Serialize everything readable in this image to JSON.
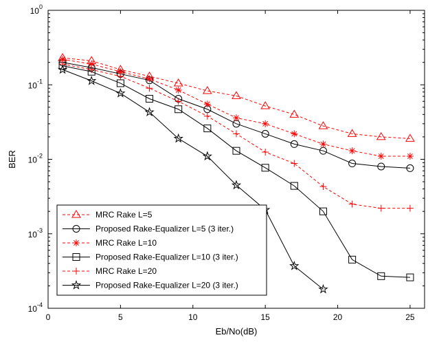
{
  "chart_data": {
    "type": "line",
    "title": "",
    "xlabel": "Eb/No(dB)",
    "ylabel": "BER",
    "xlim": [
      0,
      26
    ],
    "ylim": [
      0.0001,
      1
    ],
    "yscale": "log",
    "xticks": [
      "0",
      "5",
      "10",
      "15",
      "20",
      "25"
    ],
    "yticks": [
      {
        "base": "10",
        "exp": "0"
      },
      {
        "base": "10",
        "exp": "-1"
      },
      {
        "base": "10",
        "exp": "-2"
      },
      {
        "base": "10",
        "exp": "-3"
      },
      {
        "base": "10",
        "exp": "-4"
      }
    ],
    "grid": false,
    "legend_position": "bottom-left",
    "series": [
      {
        "name": "MRC Rake L=5",
        "color": "#ff0000",
        "line": "dashed",
        "marker": "triangle",
        "x": [
          1,
          3,
          5,
          7,
          9,
          11,
          13,
          15,
          17,
          19,
          21,
          23,
          25
        ],
        "y": [
          0.23,
          0.21,
          0.16,
          0.13,
          0.105,
          0.083,
          0.071,
          0.052,
          0.04,
          0.028,
          0.022,
          0.02,
          0.019
        ]
      },
      {
        "name": "Proposed Rake-Equalizer L=5 (3 iter.)",
        "color": "#000000",
        "line": "solid",
        "marker": "circle",
        "x": [
          1,
          3,
          5,
          7,
          9,
          11,
          13,
          15,
          17,
          19,
          21,
          23,
          25
        ],
        "y": [
          0.2,
          0.17,
          0.14,
          0.115,
          0.065,
          0.047,
          0.03,
          0.022,
          0.016,
          0.013,
          0.0088,
          0.008,
          0.0076
        ]
      },
      {
        "name": "MRC Rake L=10",
        "color": "#ff0000",
        "line": "dashed",
        "marker": "star",
        "x": [
          1,
          3,
          5,
          7,
          9,
          11,
          13,
          15,
          17,
          19,
          21,
          23,
          25
        ],
        "y": [
          0.22,
          0.19,
          0.15,
          0.12,
          0.085,
          0.055,
          0.036,
          0.03,
          0.022,
          0.016,
          0.013,
          0.011,
          0.011
        ]
      },
      {
        "name": "Proposed Rake-Equalizer L=10 (3 iter.)",
        "color": "#000000",
        "line": "solid",
        "marker": "square",
        "x": [
          1,
          3,
          5,
          7,
          9,
          11,
          13,
          15,
          17,
          19,
          21,
          23,
          25
        ],
        "y": [
          0.18,
          0.15,
          0.105,
          0.065,
          0.047,
          0.026,
          0.013,
          0.0077,
          0.0044,
          0.002,
          0.00045,
          0.00027,
          0.00026
        ]
      },
      {
        "name": "MRC Rake L=20",
        "color": "#ff0000",
        "line": "dashed",
        "marker": "plus",
        "x": [
          1,
          3,
          5,
          7,
          9,
          11,
          13,
          15,
          17,
          19,
          21,
          23,
          25
        ],
        "y": [
          0.19,
          0.16,
          0.13,
          0.09,
          0.06,
          0.038,
          0.022,
          0.0125,
          0.0088,
          0.0043,
          0.0025,
          0.0022,
          0.0022
        ]
      },
      {
        "name": "Proposed Rake-Equalizer L=20 (3 iter.)",
        "color": "#000000",
        "line": "solid",
        "marker": "pentagram",
        "x": [
          1,
          3,
          5,
          7,
          9,
          11,
          13,
          15,
          17,
          19
        ],
        "y": [
          0.16,
          0.113,
          0.077,
          0.043,
          0.019,
          0.011,
          0.0045,
          0.0021,
          0.00037,
          0.00018
        ]
      }
    ]
  }
}
